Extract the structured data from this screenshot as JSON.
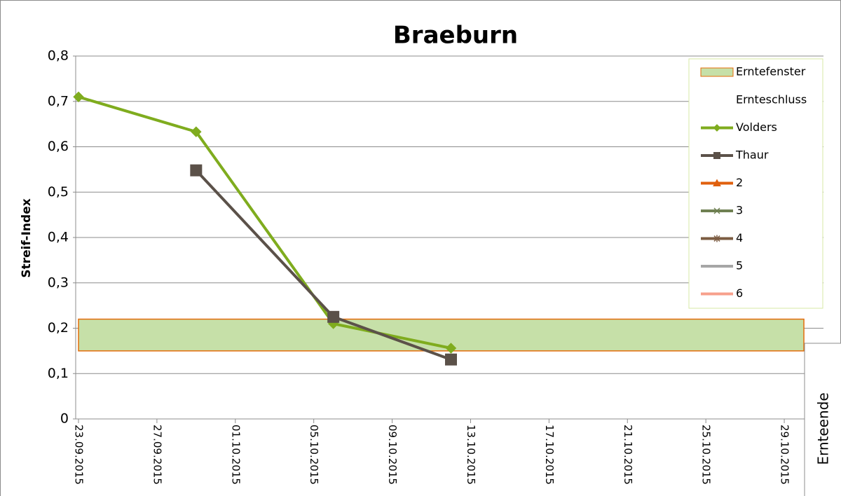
{
  "chart_data": {
    "type": "line",
    "title": "Braeburn",
    "y_label": "Streif-Index",
    "annotation": "Ernteende",
    "x": [
      "23.09.2015",
      "29.09.2015",
      "06.10.2015",
      "12.10.2015"
    ],
    "xlim": [
      "23.09.2015",
      "31.10.2015"
    ],
    "xticks": [
      "23.09.2015",
      "27.09.2015",
      "01.10.2015",
      "05.10.2015",
      "09.10.2015",
      "13.10.2015",
      "17.10.2015",
      "21.10.2015",
      "25.10.2015",
      "29.10.2015"
    ],
    "ylim": [
      0,
      0.8
    ],
    "yticks": [
      0,
      {
        "value": 0.1,
        "label": "0,1"
      },
      {
        "value": 0.2,
        "label": "0,2"
      },
      {
        "value": 0.3,
        "label": "0,3"
      },
      {
        "value": 0.4,
        "label": "0,4"
      },
      {
        "value": 0.5,
        "label": "0,5"
      },
      {
        "value": 0.6,
        "label": "0,6"
      },
      {
        "value": 0.7,
        "label": "0,7"
      },
      {
        "value": 0.8,
        "label": "0,8"
      }
    ],
    "grid": true,
    "harvest_window": {
      "name": "Erntefenster",
      "low": 0.15,
      "high": 0.22,
      "start": "23.09.2015",
      "end": "30.10.2015",
      "color": "#c6e0a8",
      "border": "#e46c0a"
    },
    "harvest_end": {
      "name": "Ernteschluss"
    },
    "series": [
      {
        "name": "Volders",
        "color": "#7fac1e",
        "marker": "diamond",
        "values": [
          0.71,
          0.633,
          0.21,
          0.156
        ]
      },
      {
        "name": "Thaur",
        "color": "#5b5149",
        "marker": "square",
        "values": [
          null,
          0.548,
          0.225,
          0.131
        ]
      },
      {
        "name": "2",
        "color": "#e0600e",
        "marker": "triangle",
        "values": [
          null,
          null,
          null,
          null
        ]
      },
      {
        "name": "3",
        "color": "#6f8052",
        "marker": "x",
        "values": [
          null,
          null,
          null,
          null
        ]
      },
      {
        "name": "4",
        "color": "#7c5c42",
        "marker": "star",
        "values": [
          null,
          null,
          null,
          null
        ]
      },
      {
        "name": "5",
        "color": "#a6a6a6",
        "marker": "none",
        "values": [
          null,
          null,
          null,
          null
        ]
      },
      {
        "name": "6",
        "color": "#f7a08c",
        "marker": "none",
        "values": [
          null,
          null,
          null,
          null
        ]
      }
    ]
  }
}
